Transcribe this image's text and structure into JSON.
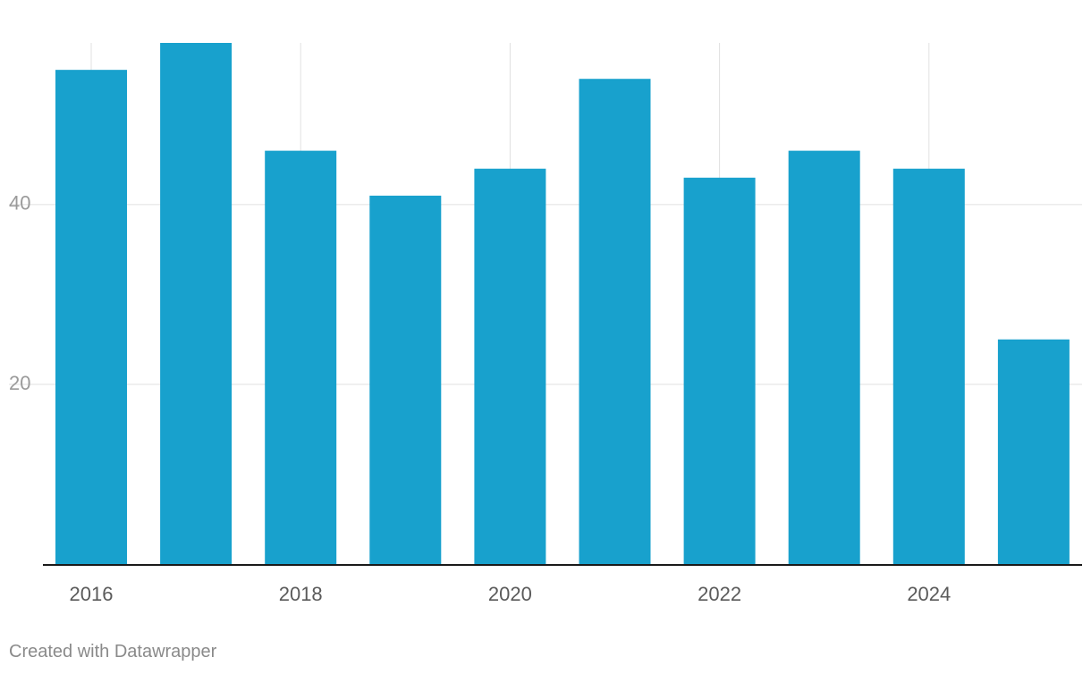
{
  "chart_data": {
    "type": "bar",
    "title": "",
    "xlabel": "",
    "ylabel": "",
    "categories": [
      "2016",
      "2017",
      "2018",
      "2019",
      "2020",
      "2021",
      "2022",
      "2023",
      "2024",
      "2025"
    ],
    "values": [
      55,
      58,
      46,
      41,
      44,
      54,
      43,
      46,
      44,
      25
    ],
    "x_tick_labels": [
      "2016",
      "2018",
      "2020",
      "2022",
      "2024"
    ],
    "y_ticks": [
      20,
      40
    ],
    "ylim": [
      0,
      58
    ],
    "grid": true,
    "bar_color": "#18a1cd"
  },
  "footer": {
    "credit": "Created with Datawrapper"
  }
}
